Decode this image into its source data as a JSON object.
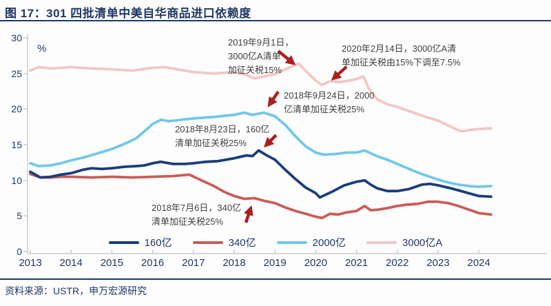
{
  "figure": {
    "title": "图 17：301 四批清单中美自华商品进口依赖度",
    "source": "资料来源：USTR，申万宏源研究"
  },
  "colors": {
    "navy": "#1f3864",
    "axis": "#c9c9c9",
    "arrow": "#ad1f1f",
    "annotation_text": "#3f3f3f"
  },
  "chart_data": {
    "type": "line",
    "title": "301 四批清单中美自华商品进口依赖度",
    "unit": "%",
    "ylabel": "%",
    "xlabel": "",
    "ylim": [
      0,
      30
    ],
    "grid": false,
    "legend_position": "bottom",
    "y_ticks": [
      30,
      25,
      20,
      15,
      10,
      5,
      0
    ],
    "x_ticks": [
      2013,
      2014,
      2015,
      2016,
      2017,
      2018,
      2019,
      2020,
      2021,
      2022,
      2023,
      2024
    ],
    "series": [
      {
        "name": "160亿",
        "color": "#1a3d7c",
        "points": [
          [
            2013,
            11.2
          ],
          [
            2013.25,
            10.4
          ],
          [
            2013.5,
            10.5
          ],
          [
            2013.75,
            10.8
          ],
          [
            2014,
            11.0
          ],
          [
            2014.3,
            11.5
          ],
          [
            2014.5,
            11.7
          ],
          [
            2014.75,
            11.6
          ],
          [
            2015,
            11.7
          ],
          [
            2015.3,
            11.9
          ],
          [
            2015.6,
            12.0
          ],
          [
            2015.8,
            12.1
          ],
          [
            2016,
            12.4
          ],
          [
            2016.2,
            12.6
          ],
          [
            2016.5,
            12.3
          ],
          [
            2016.8,
            12.3
          ],
          [
            2017,
            12.4
          ],
          [
            2017.3,
            12.6
          ],
          [
            2017.6,
            12.7
          ],
          [
            2017.8,
            12.9
          ],
          [
            2018,
            13.1
          ],
          [
            2018.3,
            13.5
          ],
          [
            2018.45,
            13.4
          ],
          [
            2018.6,
            14.2
          ],
          [
            2018.8,
            13.5
          ],
          [
            2019,
            12.9
          ],
          [
            2019.25,
            11.5
          ],
          [
            2019.5,
            10.2
          ],
          [
            2019.75,
            9.0
          ],
          [
            2020,
            8.2
          ],
          [
            2020.1,
            7.6
          ],
          [
            2020.4,
            8.4
          ],
          [
            2020.7,
            9.3
          ],
          [
            2021,
            9.8
          ],
          [
            2021.2,
            10.0
          ],
          [
            2021.35,
            9.4
          ],
          [
            2021.5,
            8.9
          ],
          [
            2021.75,
            8.5
          ],
          [
            2022,
            8.5
          ],
          [
            2022.3,
            8.8
          ],
          [
            2022.6,
            9.4
          ],
          [
            2022.8,
            9.5
          ],
          [
            2023,
            9.3
          ],
          [
            2023.3,
            8.9
          ],
          [
            2023.5,
            8.6
          ],
          [
            2023.75,
            8.2
          ],
          [
            2024,
            7.8
          ],
          [
            2024.3,
            7.7
          ]
        ]
      },
      {
        "name": "340亿",
        "color": "#ca5c57",
        "points": [
          [
            2013,
            10.9
          ],
          [
            2013.25,
            10.4
          ],
          [
            2013.5,
            10.4
          ],
          [
            2013.75,
            10.5
          ],
          [
            2014,
            10.5
          ],
          [
            2014.5,
            10.4
          ],
          [
            2015,
            10.5
          ],
          [
            2015.5,
            10.4
          ],
          [
            2016,
            10.5
          ],
          [
            2016.5,
            10.6
          ],
          [
            2016.9,
            10.8
          ],
          [
            2017.2,
            10.0
          ],
          [
            2017.5,
            9.2
          ],
          [
            2017.75,
            8.4
          ],
          [
            2018,
            7.8
          ],
          [
            2018.25,
            7.4
          ],
          [
            2018.5,
            7.5
          ],
          [
            2018.75,
            7.1
          ],
          [
            2019,
            6.8
          ],
          [
            2019.25,
            6.2
          ],
          [
            2019.5,
            5.7
          ],
          [
            2019.75,
            5.3
          ],
          [
            2020,
            4.9
          ],
          [
            2020.15,
            4.7
          ],
          [
            2020.35,
            5.3
          ],
          [
            2020.55,
            5.2
          ],
          [
            2020.75,
            5.5
          ],
          [
            2021,
            5.7
          ],
          [
            2021.2,
            6.4
          ],
          [
            2021.35,
            5.8
          ],
          [
            2021.55,
            5.9
          ],
          [
            2021.75,
            6.1
          ],
          [
            2022,
            6.4
          ],
          [
            2022.25,
            6.6
          ],
          [
            2022.5,
            6.7
          ],
          [
            2022.75,
            7.0
          ],
          [
            2023,
            7.0
          ],
          [
            2023.25,
            6.8
          ],
          [
            2023.5,
            6.4
          ],
          [
            2023.75,
            5.9
          ],
          [
            2024,
            5.4
          ],
          [
            2024.3,
            5.2
          ]
        ]
      },
      {
        "name": "2000亿",
        "color": "#72c7e7",
        "points": [
          [
            2013,
            12.4
          ],
          [
            2013.2,
            12.0
          ],
          [
            2013.5,
            12.1
          ],
          [
            2013.75,
            12.4
          ],
          [
            2014,
            12.8
          ],
          [
            2014.3,
            13.2
          ],
          [
            2014.6,
            13.7
          ],
          [
            2015,
            14.4
          ],
          [
            2015.3,
            15.1
          ],
          [
            2015.6,
            15.9
          ],
          [
            2015.8,
            16.9
          ],
          [
            2016,
            17.9
          ],
          [
            2016.2,
            18.5
          ],
          [
            2016.4,
            18.3
          ],
          [
            2016.7,
            18.5
          ],
          [
            2017,
            18.7
          ],
          [
            2017.5,
            18.9
          ],
          [
            2018,
            19.2
          ],
          [
            2018.25,
            19.5
          ],
          [
            2018.45,
            19.2
          ],
          [
            2018.73,
            19.5
          ],
          [
            2019,
            19.0
          ],
          [
            2019.25,
            17.8
          ],
          [
            2019.5,
            16.2
          ],
          [
            2019.75,
            14.8
          ],
          [
            2020,
            13.9
          ],
          [
            2020.2,
            13.6
          ],
          [
            2020.5,
            13.7
          ],
          [
            2020.75,
            13.9
          ],
          [
            2021,
            13.9
          ],
          [
            2021.2,
            14.2
          ],
          [
            2021.5,
            13.4
          ],
          [
            2021.75,
            12.9
          ],
          [
            2022,
            12.3
          ],
          [
            2022.25,
            11.7
          ],
          [
            2022.5,
            11.1
          ],
          [
            2022.75,
            10.6
          ],
          [
            2023,
            10.1
          ],
          [
            2023.25,
            9.7
          ],
          [
            2023.5,
            9.4
          ],
          [
            2023.75,
            9.2
          ],
          [
            2024,
            9.1
          ],
          [
            2024.3,
            9.2
          ]
        ]
      },
      {
        "name": "3000亿A",
        "color": "#f1c7c5",
        "points": [
          [
            2013,
            25.4
          ],
          [
            2013.2,
            25.9
          ],
          [
            2013.5,
            25.7
          ],
          [
            2013.75,
            25.8
          ],
          [
            2014,
            25.9
          ],
          [
            2014.5,
            25.7
          ],
          [
            2015,
            25.6
          ],
          [
            2015.5,
            25.4
          ],
          [
            2015.75,
            25.6
          ],
          [
            2016,
            25.8
          ],
          [
            2016.3,
            25.9
          ],
          [
            2016.6,
            25.6
          ],
          [
            2017,
            25.2
          ],
          [
            2017.5,
            25.0
          ],
          [
            2018,
            25.2
          ],
          [
            2018.3,
            24.8
          ],
          [
            2018.5,
            24.3
          ],
          [
            2018.75,
            24.6
          ],
          [
            2019,
            24.9
          ],
          [
            2019.3,
            25.7
          ],
          [
            2019.58,
            26.4
          ],
          [
            2019.8,
            25.1
          ],
          [
            2020,
            24.0
          ],
          [
            2020.15,
            23.4
          ],
          [
            2020.35,
            23.9
          ],
          [
            2020.6,
            23.8
          ],
          [
            2020.8,
            24.0
          ],
          [
            2021,
            24.2
          ],
          [
            2021.17,
            24.6
          ],
          [
            2021.3,
            22.9
          ],
          [
            2021.5,
            21.4
          ],
          [
            2021.75,
            20.7
          ],
          [
            2022,
            20.3
          ],
          [
            2022.25,
            19.8
          ],
          [
            2022.5,
            19.3
          ],
          [
            2022.75,
            18.8
          ],
          [
            2023,
            18.4
          ],
          [
            2023.25,
            17.7
          ],
          [
            2023.5,
            17.0
          ],
          [
            2023.62,
            16.9
          ],
          [
            2023.8,
            17.1
          ],
          [
            2024,
            17.2
          ],
          [
            2024.3,
            17.3
          ]
        ]
      }
    ],
    "annotations": [
      {
        "lines": [
          "2019年9月1日，",
          "3000亿A清单",
          "加征关税15%"
        ],
        "arrow_target": {
          "series": "3000亿A",
          "x": 2019.58,
          "y": 26.4
        }
      },
      {
        "lines": [
          "2020年2月14日，3000亿A清",
          "单加征关税由15%下调至7.5%"
        ],
        "arrow_target": {
          "series": "3000亿A",
          "x": 2020.15,
          "y": 23.4
        }
      },
      {
        "lines": [
          "2018年9月24日，2000",
          "亿清单加征关税25%"
        ],
        "arrow_target": {
          "series": "2000亿",
          "x": 2018.73,
          "y": 19.5
        }
      },
      {
        "lines": [
          "2018年8月23日，160亿",
          "清单加征关税25%"
        ],
        "arrow_target": {
          "series": "160亿",
          "x": 2018.6,
          "y": 14.2
        }
      },
      {
        "lines": [
          "2018年7月6日，340亿",
          "清单加征关税25%"
        ],
        "arrow_target": {
          "series": "340亿",
          "x": 2018.5,
          "y": 7.5
        }
      }
    ]
  }
}
